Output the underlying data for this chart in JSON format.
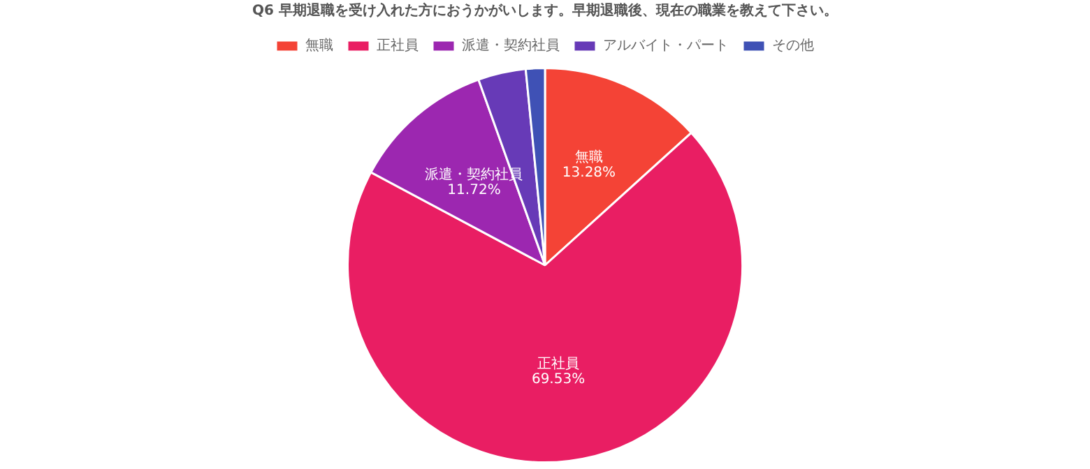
{
  "chart_data": {
    "type": "pie",
    "title": "Q6 早期退職を受け入れた方におうかがいします。早期退職後、現在の職業を教えて下さい。",
    "categories": [
      "無職",
      "正社員",
      "派遣・契約社員",
      "アルバイト・パート",
      "その他"
    ],
    "values": [
      13.28,
      69.53,
      11.72,
      3.91,
      1.56
    ],
    "colors": [
      "#f44336",
      "#e91e63",
      "#9c27b0",
      "#673ab7",
      "#3f51b5"
    ],
    "value_labels": [
      "13.28%",
      "69.53%",
      "11.72%",
      null,
      null
    ],
    "legend": "top"
  }
}
